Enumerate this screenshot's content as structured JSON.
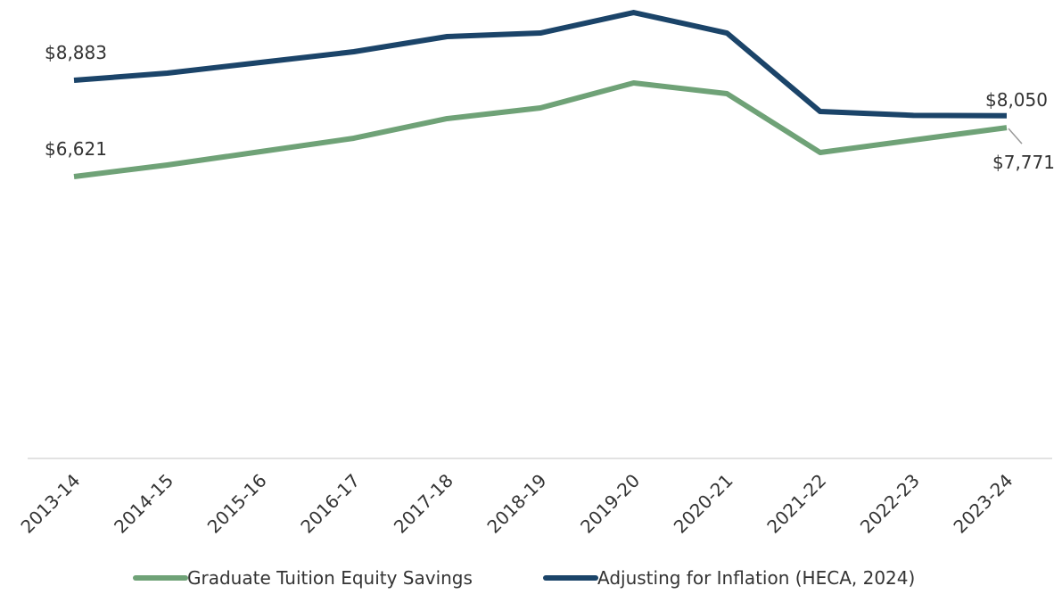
{
  "chart_data": {
    "type": "line",
    "categories": [
      "2013-14",
      "2014-15",
      "2015-16",
      "2016-17",
      "2017-18",
      "2018-19",
      "2019-20",
      "2020-21",
      "2021-22",
      "2022-23",
      "2023-24"
    ],
    "series": [
      {
        "name": "Graduate Tuition Equity Savings",
        "color": "#6fa277",
        "values": [
          6621,
          6893,
          7208,
          7522,
          7983,
          8234,
          8821,
          8570,
          7187,
          7480,
          7771
        ],
        "value_labels": [
          "$6,621",
          null,
          null,
          null,
          null,
          null,
          null,
          null,
          null,
          null,
          "$7,771"
        ]
      },
      {
        "name": "Adjusting for Inflation (HECA, 2024)",
        "color": "#1b4469",
        "values": [
          8883,
          9051,
          9303,
          9554,
          9910,
          9994,
          10476,
          9994,
          8150,
          8060,
          8050
        ],
        "value_labels": [
          "$8,883",
          null,
          null,
          null,
          null,
          null,
          null,
          null,
          null,
          null,
          "$8,050"
        ]
      }
    ],
    "ylim": [
      0,
      11000
    ],
    "legend": "bottom"
  }
}
